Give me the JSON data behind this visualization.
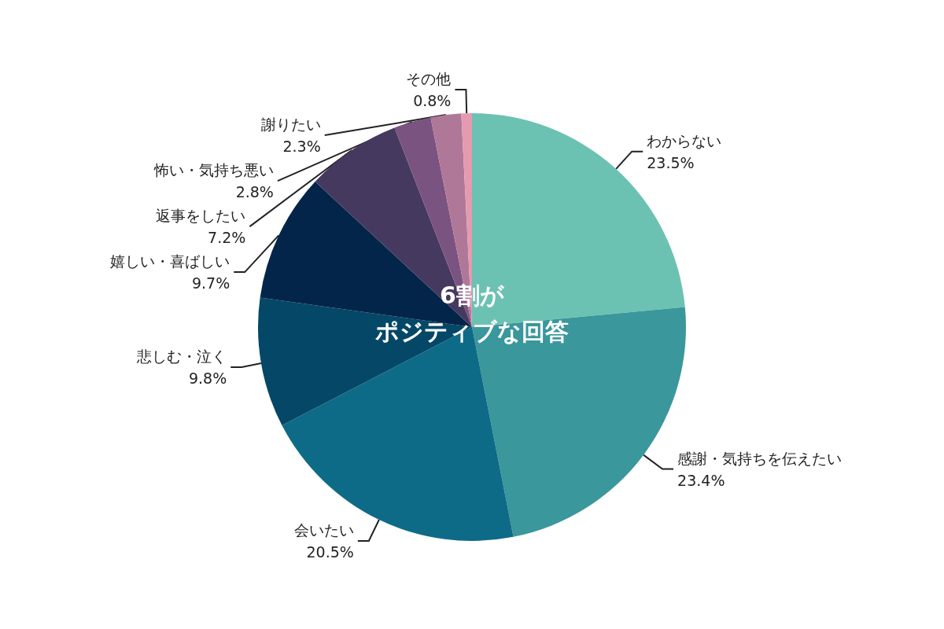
{
  "chart_data": {
    "type": "pie",
    "categories": [
      "わからない",
      "感謝・気持ちを伝えたい",
      "会いたい",
      "悲しむ・泣く",
      "嬉しい・喜ばしい",
      "返事をしたい",
      "怖い・気持ち悪い",
      "謝りたい",
      "その他"
    ],
    "values": [
      23.5,
      23.4,
      20.5,
      9.8,
      9.7,
      7.2,
      2.8,
      2.3,
      0.8
    ],
    "value_labels": [
      "23.5%",
      "23.4%",
      "20.5%",
      "9.8%",
      "9.7%",
      "7.2%",
      "2.8%",
      "2.3%",
      "0.8%"
    ],
    "colors": [
      "#6cc2b2",
      "#3a979c",
      "#0e6b87",
      "#054766",
      "#03254a",
      "#45395f",
      "#7b5380",
      "#b07898",
      "#e59ab0"
    ],
    "annotations": [
      "6割が",
      "ポジティブな回答"
    ]
  }
}
